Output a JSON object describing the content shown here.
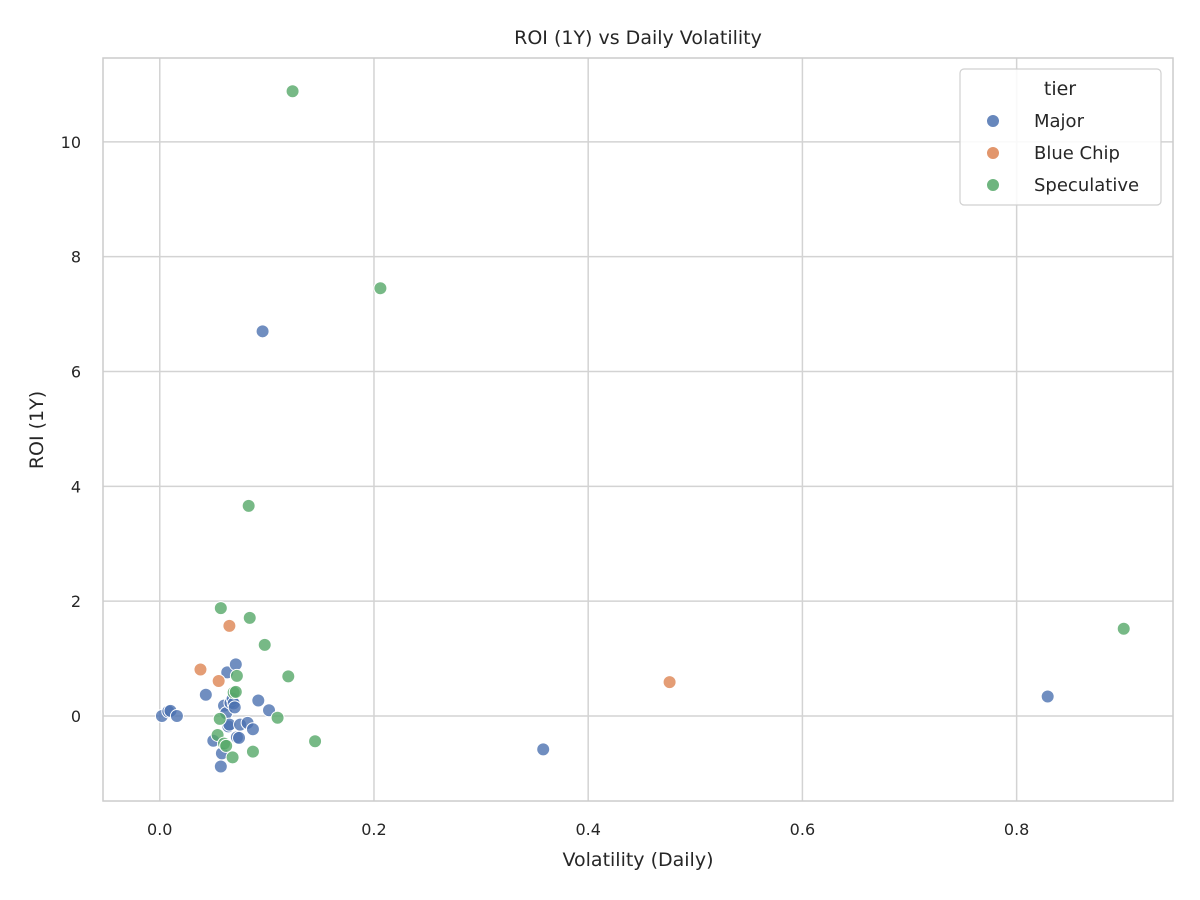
{
  "chart_data": {
    "type": "scatter",
    "title": "ROI (1Y) vs Daily Volatility",
    "xlabel": "Volatility (Daily)",
    "ylabel": "ROI (1Y)",
    "xlim": [
      -0.053,
      0.946
    ],
    "ylim": [
      -1.48,
      11.46
    ],
    "xticks": [
      0.0,
      0.2,
      0.4,
      0.6,
      0.8
    ],
    "xtick_labels": [
      "0.0",
      "0.2",
      "0.4",
      "0.6",
      "0.8"
    ],
    "yticks": [
      0,
      2,
      4,
      6,
      8,
      10
    ],
    "ytick_labels": [
      "0",
      "2",
      "4",
      "6",
      "8",
      "10"
    ],
    "grid": true,
    "legend": {
      "title": "tier",
      "placement": "top-right"
    },
    "series": [
      {
        "name": "Major",
        "color": "#4c72b0",
        "points": [
          [
            0.002,
            0.0
          ],
          [
            0.008,
            0.08
          ],
          [
            0.01,
            0.09
          ],
          [
            0.016,
            0.0
          ],
          [
            0.043,
            0.37
          ],
          [
            0.05,
            -0.43
          ],
          [
            0.057,
            -0.88
          ],
          [
            0.058,
            -0.65
          ],
          [
            0.06,
            0.18
          ],
          [
            0.062,
            0.05
          ],
          [
            0.063,
            0.76
          ],
          [
            0.064,
            -0.18
          ],
          [
            0.065,
            -0.15
          ],
          [
            0.066,
            0.23
          ],
          [
            0.068,
            0.3
          ],
          [
            0.069,
            0.22
          ],
          [
            0.07,
            0.15
          ],
          [
            0.071,
            0.9
          ],
          [
            0.072,
            -0.37
          ],
          [
            0.074,
            -0.38
          ],
          [
            0.075,
            -0.15
          ],
          [
            0.082,
            -0.12
          ],
          [
            0.087,
            -0.23
          ],
          [
            0.092,
            0.27
          ],
          [
            0.096,
            6.7
          ],
          [
            0.102,
            0.1
          ],
          [
            0.358,
            -0.58
          ],
          [
            0.829,
            0.34
          ]
        ]
      },
      {
        "name": "Blue Chip",
        "color": "#dd8452",
        "points": [
          [
            0.038,
            0.81
          ],
          [
            0.055,
            0.61
          ],
          [
            0.065,
            1.57
          ],
          [
            0.476,
            0.59
          ]
        ]
      },
      {
        "name": "Speculative",
        "color": "#55a868",
        "points": [
          [
            0.054,
            -0.33
          ],
          [
            0.056,
            -0.05
          ],
          [
            0.057,
            1.88
          ],
          [
            0.06,
            -0.48
          ],
          [
            0.062,
            -0.52
          ],
          [
            0.068,
            -0.72
          ],
          [
            0.069,
            0.41
          ],
          [
            0.071,
            0.42
          ],
          [
            0.072,
            0.7
          ],
          [
            0.083,
            3.66
          ],
          [
            0.084,
            1.71
          ],
          [
            0.087,
            -0.62
          ],
          [
            0.098,
            1.24
          ],
          [
            0.11,
            -0.03
          ],
          [
            0.12,
            0.69
          ],
          [
            0.124,
            10.88
          ],
          [
            0.145,
            -0.44
          ],
          [
            0.206,
            7.45
          ],
          [
            0.9,
            1.52
          ]
        ]
      }
    ]
  }
}
